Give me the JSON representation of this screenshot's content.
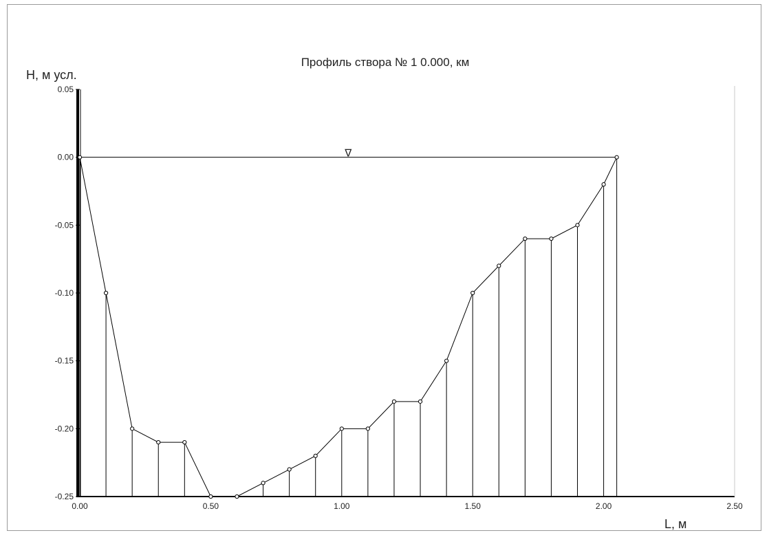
{
  "chart_data": {
    "type": "line",
    "title": "Профиль створа  № 1     0.000, км",
    "xlabel": "L, м",
    "ylabel": "H, м усл.",
    "xlim": [
      0,
      2.5
    ],
    "ylim": [
      -0.25,
      0.05
    ],
    "xticks": [
      "0.00",
      "0.50",
      "1.00",
      "1.50",
      "2.00",
      "2.50"
    ],
    "yticks": [
      "0.05",
      "0.00",
      "-0.05",
      "-0.10",
      "-0.15",
      "-0.20",
      "-0.25"
    ],
    "water_level": 0.0,
    "water_marker": "∇",
    "grid": false,
    "series": [
      {
        "x": [
          0.0,
          0.1,
          0.2,
          0.3,
          0.4,
          0.5,
          0.6,
          0.7,
          0.8,
          0.9,
          1.0,
          1.1,
          1.2,
          1.3,
          1.4,
          1.5,
          1.6,
          1.7,
          1.8,
          1.9,
          2.0,
          2.05
        ],
        "y": [
          0.0,
          -0.1,
          -0.2,
          -0.21,
          -0.21,
          -0.25,
          -0.25,
          -0.24,
          -0.23,
          -0.22,
          -0.2,
          -0.2,
          -0.18,
          -0.18,
          -0.15,
          -0.1,
          -0.08,
          -0.06,
          -0.06,
          -0.05,
          -0.02,
          0.0
        ]
      }
    ]
  }
}
